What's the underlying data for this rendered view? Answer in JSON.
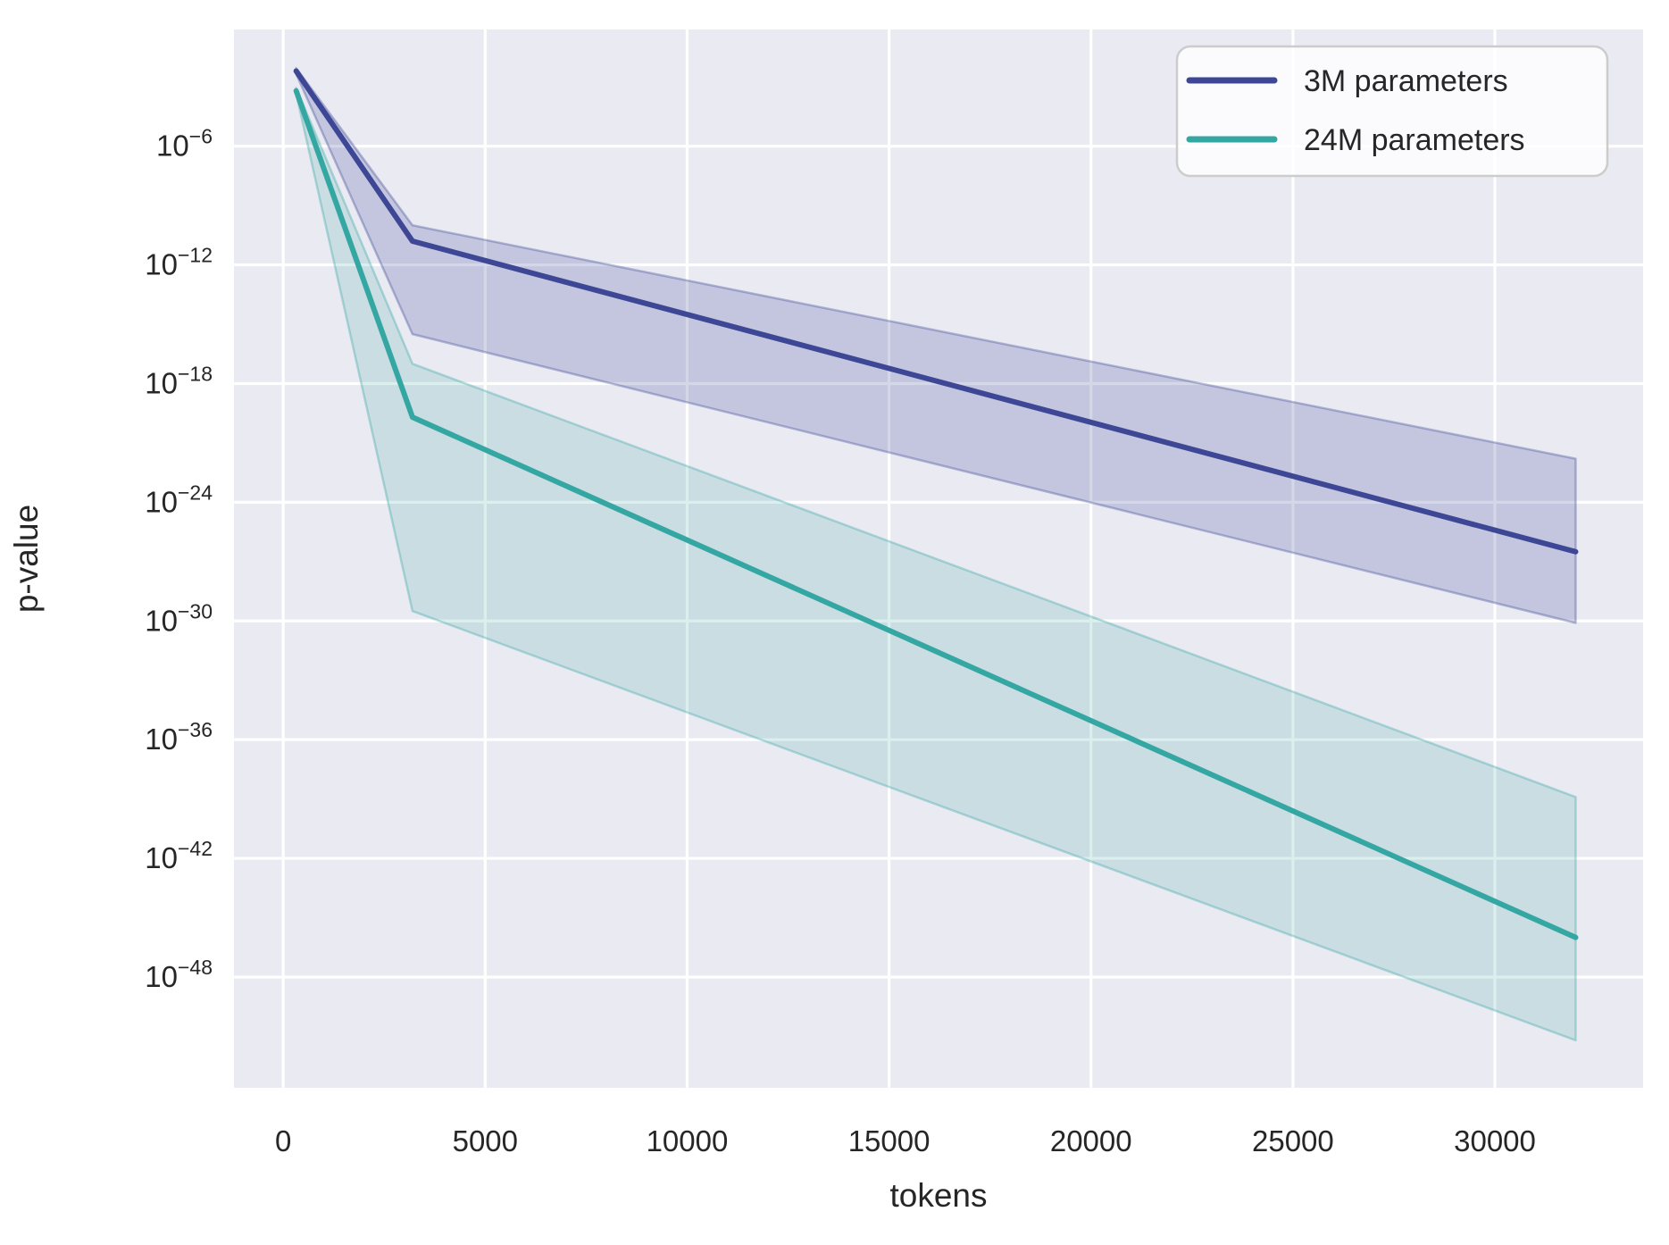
{
  "figure": {
    "background": "#ffffff",
    "plot_background": "#eaeaf2",
    "gridline_color": "#ffffff",
    "text_color": "#262626",
    "legend_border_color": "#cccccc",
    "legend_background": "rgba(255,255,255,0.8)"
  },
  "chart_data": {
    "type": "line",
    "title": "",
    "xlabel": "tokens",
    "ylabel": "p-value",
    "x_scale": "linear",
    "y_scale": "log",
    "grid": true,
    "legend_position": "upper right",
    "xlim": [
      -1220,
      33670
    ],
    "ylim_exponents": [
      -0.1,
      -53.6
    ],
    "x_ticks": [
      0,
      5000,
      10000,
      15000,
      20000,
      25000,
      30000
    ],
    "y_tick_exponents": [
      -6,
      -12,
      -18,
      -24,
      -30,
      -36,
      -42,
      -48
    ],
    "series": [
      {
        "name": "3M parameters",
        "color": "#3d4796",
        "band_alpha": 0.22,
        "x": [
          320,
          3200,
          32000
        ],
        "y_exponents": [
          -2.2,
          -10.8,
          -26.5
        ],
        "band_lo_exponents": [
          -2.35,
          -15.5,
          -30.1
        ],
        "band_hi_exponents": [
          -2.05,
          -10.0,
          -21.8
        ]
      },
      {
        "name": "24M parameters",
        "color": "#35a7a3",
        "band_alpha": 0.18,
        "x": [
          320,
          3200,
          32000
        ],
        "y_exponents": [
          -3.2,
          -19.7,
          -46.0
        ],
        "band_lo_exponents": [
          -3.35,
          -29.5,
          -51.2
        ],
        "band_hi_exponents": [
          -3.05,
          -17.0,
          -38.9
        ]
      }
    ]
  }
}
